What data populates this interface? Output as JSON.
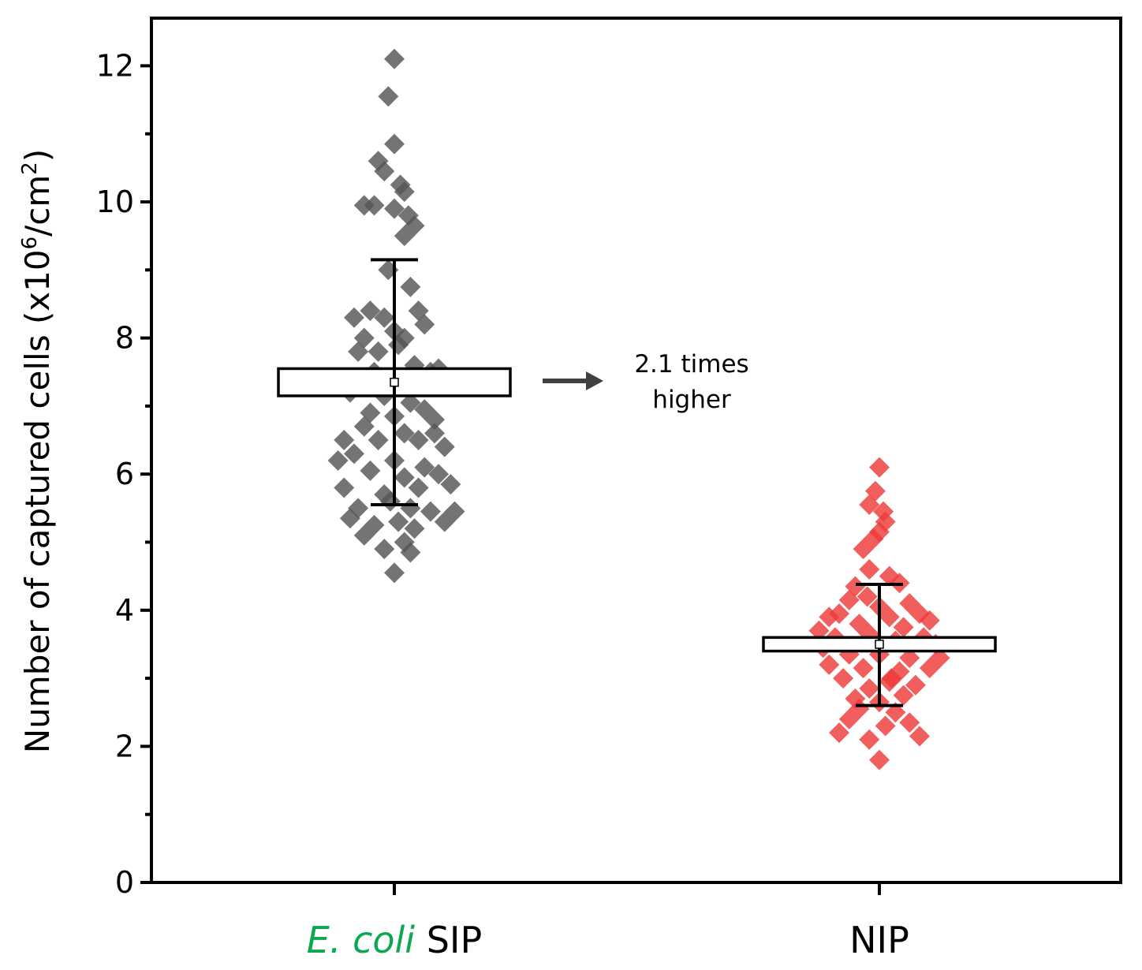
{
  "chart_data": {
    "type": "scatter",
    "title": "",
    "ylabel": "Number of captured cells (x10⁶/cm²)",
    "ylabel_parts": {
      "main": "Number of captured cells (x10",
      "exp1": "6",
      "mid": "/cm",
      "exp2": "2",
      "end": ")"
    },
    "ylim": [
      0,
      12.7
    ],
    "yticks": [
      0,
      2,
      4,
      6,
      8,
      10,
      12
    ],
    "yticks_minor": [
      1,
      3,
      5,
      7,
      9,
      11
    ],
    "grid": false,
    "categories": [
      {
        "label_italic": "E. coli",
        "label_rest": " SIP",
        "italic_color": "#0aa84f"
      },
      {
        "label_italic": "",
        "label_rest": "NIP",
        "italic_color": "#0aa84f"
      }
    ],
    "series": [
      {
        "name": "E. coli SIP",
        "color": "#555555",
        "mean": 7.35,
        "box_low": 7.15,
        "box_high": 7.55,
        "whisker_low": 5.55,
        "whisker_high": 9.15,
        "points": [
          [
            0.0,
            12.1
          ],
          [
            -0.03,
            11.55
          ],
          [
            -0.08,
            10.6
          ],
          [
            0.0,
            10.85
          ],
          [
            -0.05,
            10.45
          ],
          [
            0.03,
            10.25
          ],
          [
            0.05,
            10.15
          ],
          [
            -0.15,
            9.95
          ],
          [
            -0.1,
            9.95
          ],
          [
            0.0,
            9.9
          ],
          [
            0.07,
            9.8
          ],
          [
            0.1,
            9.65
          ],
          [
            0.05,
            9.5
          ],
          [
            -0.03,
            9.0
          ],
          [
            0.08,
            8.75
          ],
          [
            -0.12,
            8.4
          ],
          [
            0.12,
            8.4
          ],
          [
            -0.2,
            8.3
          ],
          [
            -0.05,
            8.3
          ],
          [
            0.0,
            8.1
          ],
          [
            0.05,
            8.0
          ],
          [
            -0.15,
            8.0
          ],
          [
            0.02,
            7.9
          ],
          [
            -0.18,
            7.8
          ],
          [
            -0.08,
            7.8
          ],
          [
            0.1,
            7.6
          ],
          [
            0.18,
            7.5
          ],
          [
            0.22,
            7.55
          ],
          [
            -0.22,
            7.2
          ],
          [
            -0.05,
            7.15
          ],
          [
            0.08,
            7.05
          ],
          [
            0.15,
            6.95
          ],
          [
            -0.12,
            6.9
          ],
          [
            0.0,
            6.85
          ],
          [
            0.2,
            6.8
          ],
          [
            -0.15,
            6.7
          ],
          [
            -0.25,
            6.5
          ],
          [
            0.05,
            6.6
          ],
          [
            0.12,
            6.5
          ],
          [
            -0.08,
            6.5
          ],
          [
            -0.2,
            6.3
          ],
          [
            0.25,
            6.4
          ],
          [
            -0.28,
            6.2
          ],
          [
            0.0,
            6.2
          ],
          [
            0.15,
            6.1
          ],
          [
            0.22,
            6.0
          ],
          [
            -0.12,
            6.05
          ],
          [
            0.05,
            5.95
          ],
          [
            -0.05,
            5.7
          ],
          [
            -0.25,
            5.8
          ],
          [
            0.28,
            5.85
          ],
          [
            0.12,
            5.8
          ],
          [
            -0.02,
            5.6
          ],
          [
            0.08,
            5.5
          ],
          [
            0.18,
            5.45
          ],
          [
            0.3,
            5.45
          ],
          [
            -0.22,
            5.35
          ],
          [
            0.02,
            5.3
          ],
          [
            -0.1,
            5.25
          ],
          [
            0.1,
            5.2
          ],
          [
            0.25,
            5.3
          ],
          [
            -0.15,
            5.1
          ],
          [
            0.05,
            5.0
          ],
          [
            -0.05,
            4.9
          ],
          [
            0.08,
            4.85
          ],
          [
            0.0,
            4.55
          ],
          [
            -0.18,
            5.5
          ],
          [
            0.2,
            6.6
          ],
          [
            -0.1,
            7.5
          ],
          [
            0.15,
            8.2
          ]
        ]
      },
      {
        "name": "NIP",
        "color": "#ee3a3a",
        "mean": 3.5,
        "box_low": 3.4,
        "box_high": 3.6,
        "whisker_low": 2.6,
        "whisker_high": 4.38,
        "points": [
          [
            0.0,
            6.1
          ],
          [
            -0.02,
            5.75
          ],
          [
            -0.05,
            5.55
          ],
          [
            0.02,
            5.45
          ],
          [
            0.03,
            5.3
          ],
          [
            0.0,
            5.15
          ],
          [
            -0.03,
            5.05
          ],
          [
            -0.08,
            4.9
          ],
          [
            -0.05,
            4.6
          ],
          [
            0.05,
            4.5
          ],
          [
            0.1,
            4.4
          ],
          [
            -0.12,
            4.35
          ],
          [
            -0.15,
            4.15
          ],
          [
            0.15,
            4.1
          ],
          [
            0.0,
            4.05
          ],
          [
            -0.2,
            3.95
          ],
          [
            -0.25,
            3.9
          ],
          [
            0.2,
            3.95
          ],
          [
            0.25,
            3.85
          ],
          [
            0.05,
            3.9
          ],
          [
            -0.1,
            3.8
          ],
          [
            0.12,
            3.75
          ],
          [
            -0.22,
            3.6
          ],
          [
            0.22,
            3.6
          ],
          [
            -0.05,
            3.65
          ],
          [
            0.08,
            3.55
          ],
          [
            -0.28,
            3.45
          ],
          [
            0.28,
            3.5
          ],
          [
            -0.15,
            3.35
          ],
          [
            0.15,
            3.3
          ],
          [
            0.0,
            3.35
          ],
          [
            -0.25,
            3.2
          ],
          [
            0.25,
            3.15
          ],
          [
            -0.08,
            3.15
          ],
          [
            0.1,
            3.1
          ],
          [
            -0.18,
            3.0
          ],
          [
            0.05,
            2.95
          ],
          [
            -0.05,
            2.85
          ],
          [
            0.18,
            2.9
          ],
          [
            0.12,
            2.75
          ],
          [
            -0.12,
            2.7
          ],
          [
            0.0,
            2.65
          ],
          [
            -0.1,
            2.55
          ],
          [
            0.08,
            2.5
          ],
          [
            -0.15,
            2.4
          ],
          [
            0.15,
            2.35
          ],
          [
            0.03,
            2.3
          ],
          [
            -0.2,
            2.2
          ],
          [
            0.2,
            2.15
          ],
          [
            -0.05,
            2.1
          ],
          [
            0.0,
            1.8
          ],
          [
            -0.3,
            3.7
          ],
          [
            0.3,
            3.3
          ],
          [
            -0.06,
            4.2
          ],
          [
            0.06,
            3.0
          ]
        ]
      }
    ],
    "annotation": {
      "arrow": true,
      "line1": "2.1 times",
      "line2": "higher"
    }
  }
}
